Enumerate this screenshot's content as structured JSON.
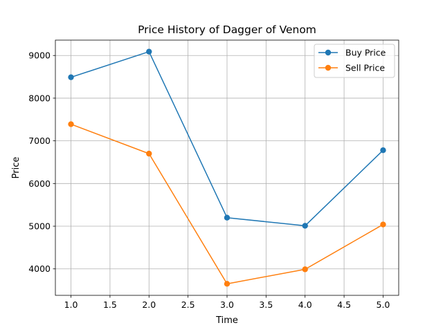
{
  "chart_data": {
    "type": "line",
    "title": "Price History of Dagger of Venom",
    "xlabel": "Time",
    "ylabel": "Price",
    "x": [
      1,
      2,
      3,
      4,
      5
    ],
    "series": [
      {
        "name": "Buy Price",
        "values": [
          8490,
          9090,
          5200,
          5010,
          6780
        ],
        "color": "#1f77b4",
        "marker": "circle"
      },
      {
        "name": "Sell Price",
        "values": [
          7390,
          6700,
          3650,
          3990,
          5040
        ],
        "color": "#ff7f0e",
        "marker": "circle"
      }
    ],
    "xlim": [
      0.8,
      5.2
    ],
    "ylim": [
      3380,
      9360
    ],
    "xticks": [
      1.0,
      1.5,
      2.0,
      2.5,
      3.0,
      3.5,
      4.0,
      4.5,
      5.0
    ],
    "xtick_labels": [
      "1.0",
      "1.5",
      "2.0",
      "2.5",
      "3.0",
      "3.5",
      "4.0",
      "4.5",
      "5.0"
    ],
    "yticks": [
      4000,
      5000,
      6000,
      7000,
      8000,
      9000
    ],
    "ytick_labels": [
      "4000",
      "5000",
      "6000",
      "7000",
      "8000",
      "9000"
    ],
    "grid": true,
    "legend_position": "top-right"
  }
}
